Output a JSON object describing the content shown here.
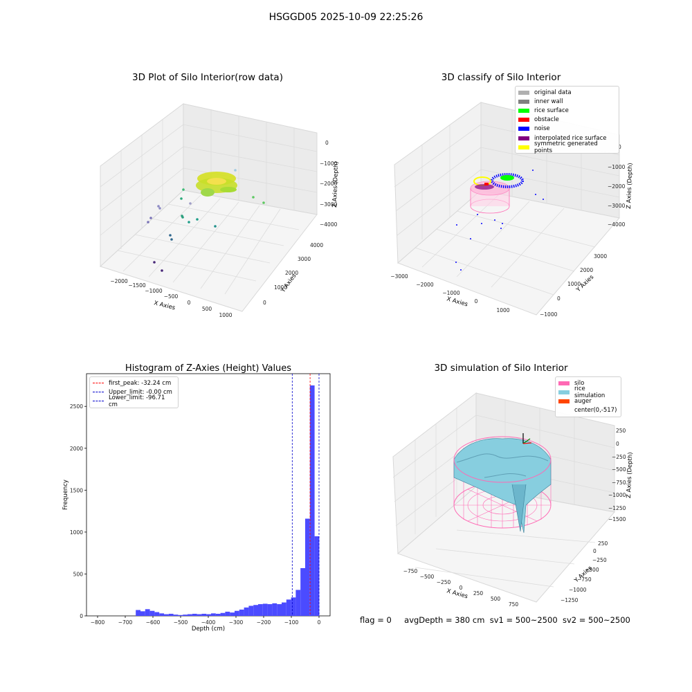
{
  "suptitle": "HSGGD05 2025-10-09 22:25:26",
  "footer": {
    "flag": "flag = 0",
    "avg_depth": "avgDepth = 380 cm",
    "sv1": "sv1 = 500~2500",
    "sv2": "sv2 = 500~2500"
  },
  "colors": {
    "hist_bar": "#4b4bff",
    "peak_line": "#ff0000",
    "limit_line": "#0000cc",
    "silo": "#ff69b4",
    "rice": "#87cedf",
    "auger": "#ff4500",
    "original": "#b0b0b0",
    "inner_wall": "#808080",
    "rice_surface": "#00ff00",
    "obstacle": "#ff0000",
    "noise": "#0000ff",
    "interpolated": "#800080",
    "symmetric": "#ffff00"
  },
  "panel1": {
    "title": "3D Plot of Silo Interior(row data)",
    "xlabel": "X Axies",
    "ylabel": "Y Axies",
    "zlabel": "Z Axies (Depth)",
    "xticks": [
      "−2000",
      "−1500",
      "−1000",
      "−500",
      "0",
      "500",
      "1000"
    ],
    "yticks": [
      "0",
      "1000",
      "2000",
      "3000",
      "4000"
    ],
    "zticks": [
      "0",
      "−1000",
      "−2000",
      "−3000",
      "−4000"
    ]
  },
  "panel2": {
    "title": "3D classify of Silo Interior",
    "xlabel": "X Axies",
    "ylabel": "Y Axies",
    "zlabel": "Z Axies (Depth)",
    "xticks": [
      "−3000",
      "−2000",
      "−1000",
      "0",
      "1000"
    ],
    "yticks": [
      "−1000",
      "0",
      "1000",
      "2000",
      "3000"
    ],
    "zticks": [
      "0",
      "−1000",
      "−2000",
      "−3000",
      "−4000"
    ],
    "legend": [
      {
        "label": "original data",
        "color": "#b0b0b0"
      },
      {
        "label": "inner wall",
        "color": "#808080"
      },
      {
        "label": "rice surface",
        "color": "#00ff00"
      },
      {
        "label": "obstacle",
        "color": "#ff0000"
      },
      {
        "label": "noise",
        "color": "#0000ff"
      },
      {
        "label": "interpolated rice surface",
        "color": "#800080"
      },
      {
        "label": "symmetric generated points",
        "color": "#ffff00"
      }
    ]
  },
  "panel4": {
    "title": "3D simulation of Silo Interior",
    "xlabel": "X Axies",
    "ylabel": "Y Axies",
    "zlabel": "Z Axies (Depth)",
    "xticks": [
      "−750",
      "−500",
      "−250",
      "0",
      "250",
      "500",
      "750"
    ],
    "yticks": [
      "−1250",
      "−1000",
      "−750",
      "−500",
      "−250",
      "0",
      "250"
    ],
    "zticks": [
      "250",
      "0",
      "−250",
      "−500",
      "−750",
      "−1000",
      "−1250",
      "−1500"
    ],
    "legend": [
      {
        "label": "silo",
        "color": "#ff69b4"
      },
      {
        "label": "rice simulation",
        "color": "#87cedf"
      },
      {
        "label": "auger",
        "color": "#ff4500"
      },
      {
        "label": "center(0,-517)",
        "color": ""
      }
    ]
  },
  "chart_data": {
    "type": "bar",
    "title": "Histogram of Z-Axies (Height) Values",
    "xlabel": "Depth (cm)",
    "ylabel": "Frequency",
    "xlim": [
      -840,
      40
    ],
    "ylim": [
      0,
      2890
    ],
    "xticks": [
      -800,
      -700,
      -600,
      -500,
      -400,
      -300,
      -200,
      -100,
      0
    ],
    "yticks": [
      0,
      500,
      1000,
      1500,
      2000,
      2500
    ],
    "bin_width": 17,
    "bin_left_edges": [
      -662,
      -645,
      -628,
      -611,
      -594,
      -577,
      -560,
      -543,
      -526,
      -509,
      -492,
      -475,
      -458,
      -441,
      -424,
      -407,
      -390,
      -373,
      -356,
      -339,
      -322,
      -305,
      -288,
      -271,
      -254,
      -237,
      -220,
      -203,
      -186,
      -169,
      -152,
      -135,
      -118,
      -101,
      -84,
      -67,
      -50,
      -33,
      -16
    ],
    "values": [
      70,
      55,
      80,
      60,
      45,
      30,
      20,
      25,
      15,
      10,
      15,
      20,
      25,
      20,
      25,
      20,
      30,
      25,
      35,
      50,
      40,
      60,
      75,
      100,
      120,
      130,
      140,
      145,
      140,
      150,
      140,
      160,
      195,
      220,
      310,
      570,
      1160,
      2750,
      950
    ],
    "vlines": [
      {
        "label": "first_peak: -32.24 cm",
        "x": -32.24,
        "color": "#ff0000"
      },
      {
        "label": "Upper_limit: -0.00 cm",
        "x": -0.0,
        "color": "#0000cc"
      },
      {
        "label": "Lower_limit: -96.71 cm",
        "x": -96.71,
        "color": "#0000cc"
      }
    ],
    "legend_position": "upper-left"
  }
}
